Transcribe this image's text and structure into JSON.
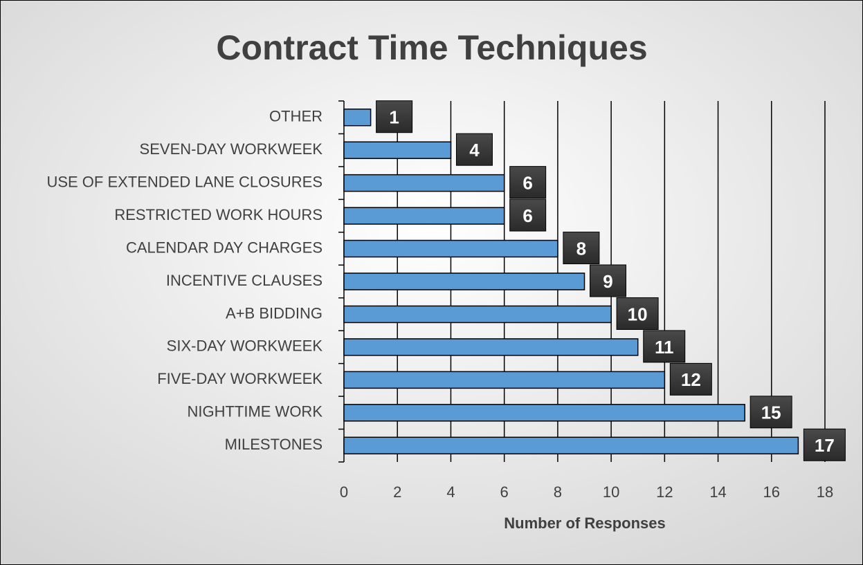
{
  "chart_data": {
    "type": "bar",
    "orientation": "horizontal",
    "title": "Contract Time Techniques",
    "x_label": "Number of Responses",
    "categories": [
      "OTHER",
      "SEVEN-DAY WORKWEEK",
      "USE OF EXTENDED LANE CLOSURES",
      "RESTRICTED WORK HOURS",
      "CALENDAR DAY CHARGES",
      "INCENTIVE CLAUSES",
      "A+B BIDDING",
      "SIX-DAY WORKWEEK",
      "FIVE-DAY WORKWEEK",
      "NIGHTTIME WORK",
      "MILESTONES"
    ],
    "values": [
      1,
      4,
      6,
      6,
      8,
      9,
      10,
      11,
      12,
      15,
      17
    ],
    "color": "#5b9bd5",
    "xlim": [
      0,
      18
    ],
    "xticks": [
      0,
      2,
      4,
      6,
      8,
      10,
      12,
      14,
      16,
      18
    ],
    "grid": true
  }
}
